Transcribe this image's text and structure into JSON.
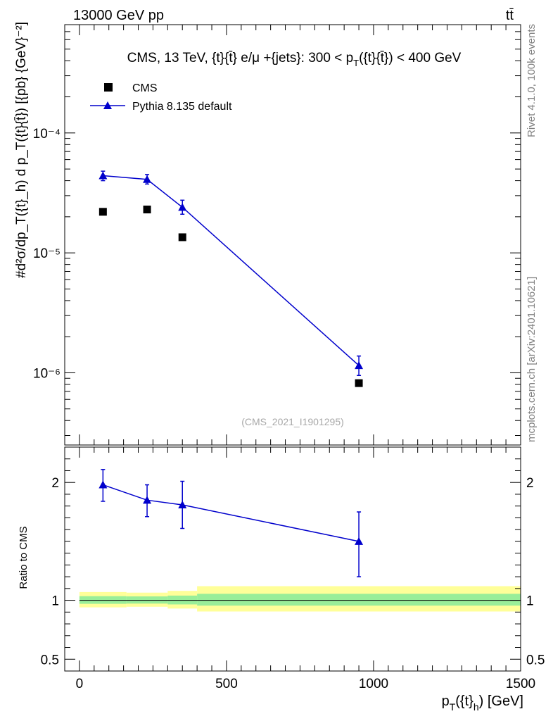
{
  "header": {
    "left": "13000 GeV pp",
    "right": "tt̄"
  },
  "side_labels": {
    "rivet": "Rivet 4.1.0,  100k events",
    "mcplots": "mcplots.cern.ch [arXiv:2401.10621]"
  },
  "chart_data": [
    {
      "type": "scatter",
      "panel": "main",
      "title": "CMS, 13 TeV, {t}{t̄} e/μ +{jets}: 300 <  p_T({t}{t̄}) < 400 GeV",
      "title_parts": {
        "lead": "CMS, 13 TeV, {t}{",
        "tbar": "t̄",
        "mid": "} e/μ +{jets}: 300 <  p",
        "sub": "T",
        "tail": "({t}{t̄}) < 400 GeV"
      },
      "watermark": "(CMS_2021_I1901295)",
      "ylabel": "#d²σ/dp_T({t}_h) d p_T({t}{t̄}) [{pb} {GeV}⁻²]",
      "yscale": "log",
      "ylim": [
        2.5e-07,
        0.0008
      ],
      "xlim": [
        -50,
        1500
      ],
      "ytick_values": [
        1e-06,
        1e-05,
        0.0001
      ],
      "ytick_labels": [
        "10⁻⁶",
        "10⁻⁵",
        "10⁻⁴"
      ],
      "legend": [
        "CMS",
        "Pythia 8.135 default"
      ],
      "legend_position": "top-left",
      "series": [
        {
          "name": "CMS",
          "marker": "square",
          "color": "#000000",
          "x": [
            80,
            230,
            350,
            950
          ],
          "values": [
            2.2e-05,
            2.3e-05,
            1.35e-05,
            8.2e-07
          ]
        },
        {
          "name": "Pythia 8.135 default",
          "marker": "triangle",
          "color": "#0000cc",
          "x": [
            80,
            230,
            350,
            950
          ],
          "values": [
            4.4e-05,
            4.1e-05,
            2.4e-05,
            1.15e-06
          ],
          "err_low": [
            4e-05,
            3.75e-05,
            2.1e-05,
            9.5e-07
          ],
          "err_high": [
            4.8e-05,
            4.5e-05,
            2.75e-05,
            1.38e-06
          ]
        }
      ]
    },
    {
      "type": "line",
      "panel": "ratio",
      "ylabel": "Ratio to CMS",
      "ylim": [
        0.4,
        2.3
      ],
      "xlim": [
        -50,
        1500
      ],
      "xlabel": "p_T({t}_h) [GeV]",
      "xlabel_parts": {
        "lead": "p",
        "sub1": "T",
        "mid": "({t}",
        "sub2": "h",
        "tail": ") [GeV]"
      },
      "xtick_values": [
        0,
        500,
        1000,
        1500
      ],
      "xtick_labels": [
        "0",
        "500",
        "1000",
        "1500"
      ],
      "ytick_values": [
        0.5,
        1,
        2
      ],
      "ytick_labels": [
        "0.5",
        "1",
        "2"
      ],
      "bands": [
        {
          "x0": 0,
          "x1": 160,
          "yellow": [
            0.94,
            1.07
          ],
          "green": [
            0.97,
            1.035
          ]
        },
        {
          "x0": 160,
          "x1": 300,
          "yellow": [
            0.945,
            1.065
          ],
          "green": [
            0.972,
            1.033
          ]
        },
        {
          "x0": 300,
          "x1": 400,
          "yellow": [
            0.93,
            1.08
          ],
          "green": [
            0.965,
            1.04
          ]
        },
        {
          "x0": 400,
          "x1": 1500,
          "yellow": [
            0.905,
            1.12
          ],
          "green": [
            0.955,
            1.055
          ]
        }
      ],
      "series": [
        {
          "name": "Pythia 8.135 default",
          "color": "#0000cc",
          "x": [
            80,
            230,
            350,
            950
          ],
          "values": [
            1.98,
            1.85,
            1.81,
            1.5
          ],
          "err_low": [
            1.84,
            1.71,
            1.61,
            1.2
          ],
          "err_high": [
            2.11,
            1.98,
            2.01,
            1.75
          ]
        }
      ]
    }
  ]
}
